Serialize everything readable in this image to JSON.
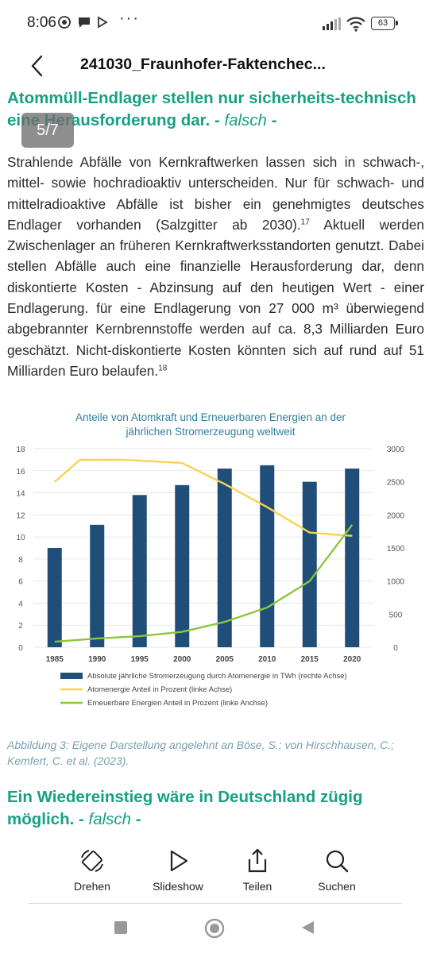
{
  "status": {
    "time": "8:06",
    "battery": "63"
  },
  "header": {
    "title": "241030_Fraunhofer-Faktenchec..."
  },
  "page_indicator": "5/7",
  "section1": {
    "heading": "Atommüll-Endlager stellen nur sicherheits-technisch eine Herausforderung dar. -",
    "heading_verdict": "falsch",
    "heading_tail": "-"
  },
  "body": {
    "part1": "Strahlende Abfälle von Kernkraftwerken lassen sich in schwach-, mittel- sowie hochradioaktiv unterscheiden. Nur für schwach- und mittelradioaktive Abfälle ist bisher ein genehmigtes deutsches Endlager vorhanden (Salzgitter ab 2030).",
    "fn1": "17",
    "part2": " Aktuell werden Zwischenlager an früheren Kernkraftwerksstandorten genutzt. Dabei stellen Abfälle auch eine finanzielle Herausforderung dar, denn diskontierte Kosten - Abzinsung auf den heutigen Wert - einer Endlagerung. für eine Endlagerung von 27 000 m³ überwiegend abgebrannter Kernbrennstoffe werden auf ca. 8,3 Milliarden Euro geschätzt. Nicht-diskontierte Kosten könnten sich auf rund auf 51 Milliarden Euro belaufen.",
    "fn2": "18"
  },
  "chart_data": {
    "type": "bar+line",
    "title_line1": "Anteile von Atomkraft und Erneuerbaren Energien an der",
    "title_line2": "jährlichen Stromerzeugung weltweit",
    "categories": [
      "1985",
      "1990",
      "1995",
      "2000",
      "2005",
      "2010",
      "2015",
      "2020"
    ],
    "left_axis": {
      "ylim": [
        0,
        18
      ],
      "ticks": [
        "0",
        "2",
        "4",
        "6",
        "8",
        "10",
        "12",
        "14",
        "16",
        "18"
      ]
    },
    "right_axis": {
      "ylim": [
        0,
        3000
      ],
      "ticks": [
        "0",
        "500",
        "1000",
        "1500",
        "2000",
        "2500",
        "3000"
      ]
    },
    "series": [
      {
        "name": "Absolute jährliche Stromerzeugung durch Atomenergie in TWh (rechte Achse)",
        "kind": "bar",
        "axis": "right",
        "color": "#1f4e79",
        "values": [
          1500,
          1850,
          2300,
          2450,
          2700,
          2750,
          2500,
          2700
        ]
      },
      {
        "name": "Atomenergie Anteil in Prozent (linke Achse)",
        "kind": "line",
        "axis": "left",
        "color": "#f7d451",
        "points": [
          [
            1985,
            15.0
          ],
          [
            1988,
            17.0
          ],
          [
            1993,
            17.0
          ],
          [
            1998,
            16.8
          ],
          [
            2000,
            16.7
          ],
          [
            2005,
            14.8
          ],
          [
            2010,
            12.7
          ],
          [
            2015,
            10.4
          ],
          [
            2018,
            10.2
          ],
          [
            2020,
            10.1
          ]
        ]
      },
      {
        "name": "Erneuerbare Energien Anteil in Prozent (linke Anchse)",
        "kind": "line",
        "axis": "left",
        "color": "#8cc63f",
        "points": [
          [
            1985,
            0.5
          ],
          [
            1990,
            0.8
          ],
          [
            1995,
            1.0
          ],
          [
            2000,
            1.4
          ],
          [
            2005,
            2.3
          ],
          [
            2010,
            3.6
          ],
          [
            2015,
            6.0
          ],
          [
            2020,
            11.1
          ]
        ]
      }
    ]
  },
  "caption": "Abbildung 3: Eigene Darstellung angelehnt an Böse, S.; von Hirschhausen, C.; Kemfert, C. et al. (2023).",
  "section2": {
    "heading": "Ein Wiedereinstieg wäre in Deutschland zügig möglich. -",
    "heading_verdict": "falsch",
    "heading_tail": "-"
  },
  "toolbar": {
    "rotate": "Drehen",
    "slideshow": "Slideshow",
    "share": "Teilen",
    "search": "Suchen"
  },
  "colors": {
    "accent_green": "#16a085",
    "bar_blue": "#1f4e79"
  }
}
